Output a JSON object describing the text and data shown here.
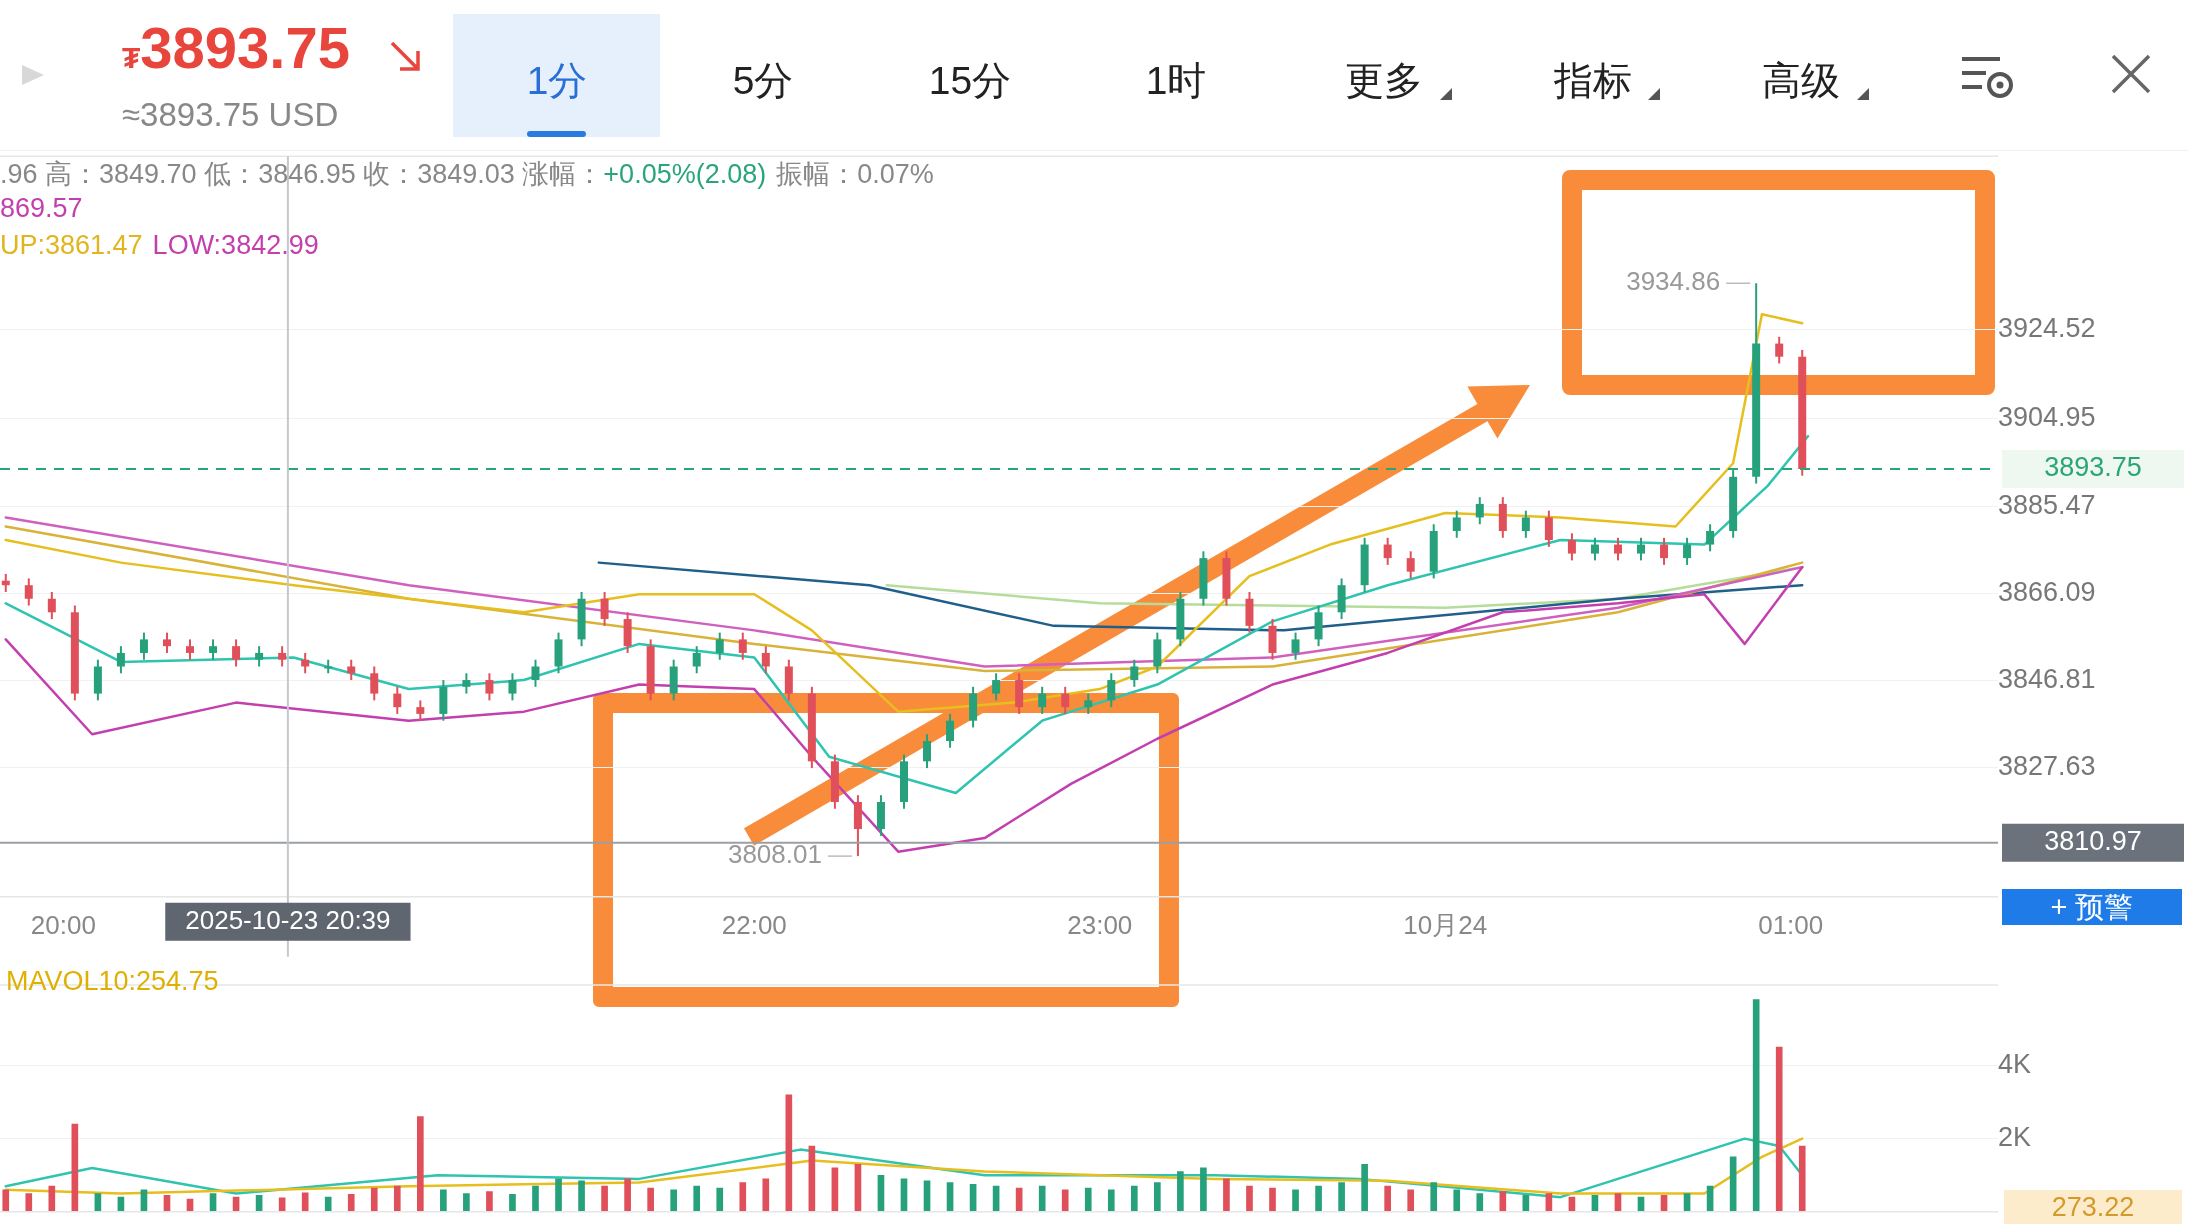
{
  "chart_data": [
    {
      "type": "candlestick",
      "x": [
        "2025-10-23T19:50",
        "2025-10-23T19:54",
        "2025-10-23T19:58",
        "2025-10-23T20:02",
        "2025-10-23T20:06",
        "2025-10-23T20:10",
        "2025-10-23T20:14",
        "2025-10-23T20:18",
        "2025-10-23T20:22",
        "2025-10-23T20:26",
        "2025-10-23T20:30",
        "2025-10-23T20:34",
        "2025-10-23T20:38",
        "2025-10-23T20:42",
        "2025-10-23T20:46",
        "2025-10-23T20:50",
        "2025-10-23T20:54",
        "2025-10-23T20:58",
        "2025-10-23T21:02",
        "2025-10-23T21:06",
        "2025-10-23T21:10",
        "2025-10-23T21:14",
        "2025-10-23T21:18",
        "2025-10-23T21:22",
        "2025-10-23T21:26",
        "2025-10-23T21:30",
        "2025-10-23T21:34",
        "2025-10-23T21:38",
        "2025-10-23T21:42",
        "2025-10-23T21:46",
        "2025-10-23T21:50",
        "2025-10-23T21:54",
        "2025-10-23T21:58",
        "2025-10-23T22:02",
        "2025-10-23T22:06",
        "2025-10-23T22:10",
        "2025-10-23T22:14",
        "2025-10-23T22:18",
        "2025-10-23T22:22",
        "2025-10-23T22:26",
        "2025-10-23T22:30",
        "2025-10-23T22:34",
        "2025-10-23T22:38",
        "2025-10-23T22:42",
        "2025-10-23T22:46",
        "2025-10-23T22:50",
        "2025-10-23T22:54",
        "2025-10-23T22:58",
        "2025-10-23T23:02",
        "2025-10-23T23:06",
        "2025-10-23T23:10",
        "2025-10-23T23:14",
        "2025-10-23T23:18",
        "2025-10-23T23:22",
        "2025-10-23T23:26",
        "2025-10-23T23:30",
        "2025-10-23T23:34",
        "2025-10-23T23:38",
        "2025-10-23T23:42",
        "2025-10-23T23:46",
        "2025-10-23T23:50",
        "2025-10-23T23:54",
        "2025-10-23T23:58",
        "2025-10-24T00:02",
        "2025-10-24T00:06",
        "2025-10-24T00:10",
        "2025-10-24T00:14",
        "2025-10-24T00:18",
        "2025-10-24T00:22",
        "2025-10-24T00:26",
        "2025-10-24T00:30",
        "2025-10-24T00:34",
        "2025-10-24T00:38",
        "2025-10-24T00:42",
        "2025-10-24T00:46",
        "2025-10-24T00:50",
        "2025-10-24T00:54",
        "2025-10-24T00:58",
        "2025-10-24T01:02"
      ],
      "ohlc": [
        [
          3869,
          3870.5,
          3866.5,
          3868
        ],
        [
          3868,
          3869.5,
          3863.5,
          3865
        ],
        [
          3865,
          3866.5,
          3860.5,
          3862
        ],
        [
          3862,
          3863.5,
          3842.5,
          3844
        ],
        [
          3844,
          3851.5,
          3842.5,
          3850
        ],
        [
          3850,
          3854.5,
          3848.5,
          3853
        ],
        [
          3853,
          3857.5,
          3851.5,
          3856
        ],
        [
          3856,
          3857.5,
          3853,
          3854.5
        ],
        [
          3854.5,
          3856,
          3851.5,
          3853
        ],
        [
          3853,
          3856,
          3851.5,
          3854.5
        ],
        [
          3854.5,
          3856,
          3850,
          3851.5
        ],
        [
          3851.5,
          3854.5,
          3850,
          3853
        ],
        [
          3853,
          3854.5,
          3850,
          3851.5
        ],
        [
          3851.5,
          3853,
          3848.5,
          3850
        ],
        [
          3850,
          3851.5,
          3848.5,
          3850
        ],
        [
          3850,
          3851.5,
          3847,
          3848.5
        ],
        [
          3848.5,
          3850,
          3842.5,
          3844
        ],
        [
          3844,
          3845.5,
          3839.5,
          3841
        ],
        [
          3841,
          3842.5,
          3838,
          3839.5
        ],
        [
          3839.5,
          3847,
          3838,
          3845.5
        ],
        [
          3845.5,
          3848.5,
          3844,
          3847
        ],
        [
          3847,
          3848.5,
          3842.5,
          3844
        ],
        [
          3844,
          3848.5,
          3842.5,
          3847
        ],
        [
          3847,
          3851.5,
          3845.5,
          3850
        ],
        [
          3850,
          3857.5,
          3848.5,
          3856
        ],
        [
          3856,
          3866.5,
          3854.5,
          3865
        ],
        [
          3865,
          3866.5,
          3859,
          3860.5
        ],
        [
          3860.5,
          3862,
          3853,
          3854.5
        ],
        [
          3854.5,
          3856,
          3842.5,
          3844
        ],
        [
          3844,
          3851.5,
          3842.5,
          3850
        ],
        [
          3850,
          3854.5,
          3848.5,
          3853
        ],
        [
          3853,
          3857.5,
          3851.5,
          3856
        ],
        [
          3856,
          3857.5,
          3851.5,
          3853
        ],
        [
          3853,
          3854.5,
          3848.5,
          3850
        ],
        [
          3850,
          3851.5,
          3842.5,
          3844
        ],
        [
          3844,
          3845.5,
          3827.5,
          3829
        ],
        [
          3829,
          3830.5,
          3818.5,
          3820
        ],
        [
          3820,
          3821.5,
          3808.01,
          3814
        ],
        [
          3814,
          3821.5,
          3812.5,
          3820
        ],
        [
          3820,
          3830.5,
          3818.5,
          3829
        ],
        [
          3829,
          3835,
          3827.5,
          3833.5
        ],
        [
          3833.5,
          3839.5,
          3832,
          3838
        ],
        [
          3838,
          3845.5,
          3836.5,
          3844
        ],
        [
          3844,
          3848.5,
          3842.5,
          3847
        ],
        [
          3847,
          3848.5,
          3839.5,
          3841
        ],
        [
          3841,
          3845.5,
          3839.5,
          3844
        ],
        [
          3844,
          3845.5,
          3839.5,
          3841
        ],
        [
          3841,
          3844,
          3839.5,
          3842.5
        ],
        [
          3842.5,
          3848.5,
          3841,
          3847
        ],
        [
          3847,
          3851.5,
          3845.5,
          3850
        ],
        [
          3850,
          3857.5,
          3848.5,
          3856
        ],
        [
          3856,
          3866.5,
          3854.5,
          3865
        ],
        [
          3865,
          3875.5,
          3863.5,
          3874
        ],
        [
          3874,
          3875.5,
          3863.5,
          3865
        ],
        [
          3865,
          3866.5,
          3857.5,
          3859
        ],
        [
          3859,
          3860.5,
          3851.5,
          3853
        ],
        [
          3853,
          3857.5,
          3851.5,
          3856
        ],
        [
          3856,
          3863.5,
          3854.5,
          3862
        ],
        [
          3862,
          3869.5,
          3860.5,
          3868
        ],
        [
          3868,
          3878.5,
          3866.5,
          3877
        ],
        [
          3877,
          3878.5,
          3872.5,
          3874
        ],
        [
          3874,
          3875.5,
          3869.5,
          3871
        ],
        [
          3871,
          3881.5,
          3869.5,
          3880
        ],
        [
          3880,
          3884.5,
          3878.5,
          3883
        ],
        [
          3883,
          3887.5,
          3881.5,
          3886
        ],
        [
          3886,
          3887.5,
          3878.5,
          3880
        ],
        [
          3880,
          3884.5,
          3878.5,
          3883
        ],
        [
          3883,
          3884.5,
          3876.5,
          3878
        ],
        [
          3878,
          3879.5,
          3873.5,
          3875
        ],
        [
          3875,
          3878.5,
          3873.5,
          3877
        ],
        [
          3877,
          3878.5,
          3873.5,
          3875
        ],
        [
          3875,
          3878.5,
          3873.5,
          3877
        ],
        [
          3877,
          3878.5,
          3872.5,
          3874
        ],
        [
          3874,
          3878.5,
          3872.5,
          3877
        ],
        [
          3877,
          3881.5,
          3875.5,
          3880
        ],
        [
          3880,
          3893.5,
          3878.5,
          3892
        ],
        [
          3892,
          3934.86,
          3890.5,
          3921.5
        ],
        [
          3921.5,
          3923,
          3917.1,
          3918.6
        ],
        [
          3918.6,
          3920.1,
          3892.25,
          3893.75
        ]
      ],
      "colors": [
        "#e0505a",
        "#e0505a",
        "#e0505a",
        "#e0505a",
        "#26a17b",
        "#26a17b",
        "#26a17b",
        "#e0505a",
        "#e0505a",
        "#26a17b",
        "#e0505a",
        "#26a17b",
        "#e0505a",
        "#e0505a",
        "#26a17b",
        "#e0505a",
        "#e0505a",
        "#e0505a",
        "#e0505a",
        "#26a17b",
        "#26a17b",
        "#e0505a",
        "#26a17b",
        "#26a17b",
        "#26a17b",
        "#26a17b",
        "#e0505a",
        "#e0505a",
        "#e0505a",
        "#26a17b",
        "#26a17b",
        "#26a17b",
        "#e0505a",
        "#e0505a",
        "#e0505a",
        "#e0505a",
        "#e0505a",
        "#e0505a",
        "#26a17b",
        "#26a17b",
        "#26a17b",
        "#26a17b",
        "#26a17b",
        "#26a17b",
        "#e0505a",
        "#26a17b",
        "#e0505a",
        "#26a17b",
        "#26a17b",
        "#26a17b",
        "#26a17b",
        "#26a17b",
        "#26a17b",
        "#e0505a",
        "#e0505a",
        "#e0505a",
        "#26a17b",
        "#26a17b",
        "#26a17b",
        "#26a17b",
        "#e0505a",
        "#e0505a",
        "#26a17b",
        "#26a17b",
        "#26a17b",
        "#e0505a",
        "#26a17b",
        "#e0505a",
        "#e0505a",
        "#26a17b",
        "#e0505a",
        "#26a17b",
        "#e0505a",
        "#26a17b",
        "#26a17b",
        "#26a17b",
        "#26a17b",
        "#e0505a",
        "#e0505a"
      ],
      "series": [
        {
          "type": "line",
          "color": "#e6bf1e",
          "x": [
            "2025-10-23T19:50",
            "2025-10-23T20:10",
            "2025-10-23T20:40",
            "2025-10-23T21:20",
            "2025-10-23T21:40",
            "2025-10-23T22:00",
            "2025-10-23T22:10",
            "2025-10-23T22:25",
            "2025-10-23T22:45",
            "2025-10-23T23:00",
            "2025-10-23T23:10",
            "2025-10-23T23:26",
            "2025-10-23T23:40",
            "2025-10-24T00:00",
            "2025-10-24T00:20",
            "2025-10-24T00:40",
            "2025-10-24T00:50",
            "2025-10-24T00:55",
            "2025-10-24T01:02"
          ],
          "values": [
            3878,
            3873,
            3868,
            3862,
            3866,
            3866,
            3858,
            3840,
            3842,
            3845,
            3850,
            3870,
            3877,
            3884,
            3883,
            3881,
            3895,
            3928,
            3926
          ]
        },
        {
          "type": "line",
          "color": "#2ec4b0",
          "x": [
            "2025-10-23T19:50",
            "2025-10-23T20:10",
            "2025-10-23T20:40",
            "2025-10-23T21:00",
            "2025-10-23T21:20",
            "2025-10-23T21:40",
            "2025-10-23T22:00",
            "2025-10-23T22:13",
            "2025-10-23T22:35",
            "2025-10-23T22:50",
            "2025-10-23T23:10",
            "2025-10-23T23:30",
            "2025-10-23T23:50",
            "2025-10-24T00:20",
            "2025-10-24T00:45",
            "2025-10-24T00:56",
            "2025-10-24T01:03"
          ],
          "values": [
            3864,
            3851,
            3852,
            3845,
            3847,
            3855,
            3852,
            3830,
            3822,
            3838,
            3846,
            3860,
            3868,
            3878,
            3877,
            3890,
            3901
          ]
        },
        {
          "type": "line",
          "color": "#c33fae",
          "x": [
            "2025-10-23T19:50",
            "2025-10-23T20:05",
            "2025-10-23T20:30",
            "2025-10-23T21:00",
            "2025-10-23T21:20",
            "2025-10-23T21:40",
            "2025-10-23T22:00",
            "2025-10-23T22:10",
            "2025-10-23T22:25",
            "2025-10-23T22:40",
            "2025-10-23T22:55",
            "2025-10-23T23:10",
            "2025-10-23T23:30",
            "2025-10-23T23:50",
            "2025-10-24T00:10",
            "2025-10-24T00:30",
            "2025-10-24T00:45",
            "2025-10-24T00:52",
            "2025-10-24T01:02"
          ],
          "values": [
            3856,
            3835,
            3842,
            3838,
            3840,
            3846,
            3845,
            3830,
            3809,
            3812,
            3824,
            3834,
            3846,
            3853,
            3862,
            3864,
            3866,
            3855,
            3872
          ]
        },
        {
          "type": "line",
          "color": "#d060c0",
          "x": [
            "2025-10-23T19:50",
            "2025-10-23T21:00",
            "2025-10-23T22:00",
            "2025-10-23T22:40",
            "2025-10-23T23:30",
            "2025-10-24T00:30",
            "2025-10-24T01:02"
          ],
          "values": [
            3883,
            3868,
            3858,
            3850,
            3852,
            3863,
            3872
          ]
        },
        {
          "type": "line",
          "color": "#d9b23a",
          "x": [
            "2025-10-23T19:50",
            "2025-10-23T21:00",
            "2025-10-23T22:00",
            "2025-10-23T22:40",
            "2025-10-23T23:30",
            "2025-10-24T00:30",
            "2025-10-24T01:02"
          ],
          "values": [
            3881,
            3865,
            3855,
            3849,
            3850,
            3862,
            3873
          ]
        },
        {
          "type": "line",
          "color": "#1f5f8a",
          "x": [
            "2025-10-23T21:33",
            "2025-10-23T22:20",
            "2025-10-23T22:52",
            "2025-10-23T23:32",
            "2025-10-24T00:30",
            "2025-10-24T01:02"
          ],
          "values": [
            3873,
            3868,
            3859,
            3858,
            3865,
            3868
          ]
        },
        {
          "type": "line",
          "color": "#b5dc9a",
          "x": [
            "2025-10-23T22:23",
            "2025-10-23T23:00",
            "2025-10-24T00:00",
            "2025-10-24T00:30",
            "2025-10-24T01:02"
          ],
          "values": [
            3868,
            3864,
            3863,
            3865,
            3872
          ]
        }
      ],
      "xlim": [
        "2025-10-23T19:49",
        "2025-10-24T01:36"
      ],
      "xticks": [
        {
          "value": "2025-10-23T20:00",
          "label": "20:00"
        },
        {
          "value": "2025-10-23T22:00",
          "label": "22:00"
        },
        {
          "value": "2025-10-23T23:00",
          "label": "23:00"
        },
        {
          "value": "2025-10-24T00:00",
          "label": "10月24"
        },
        {
          "value": "2025-10-24T01:00",
          "label": "01:00"
        }
      ],
      "ylim": [
        3799,
        3963
      ],
      "yticks": [
        3827.63,
        3846.81,
        3866.09,
        3885.47,
        3904.95,
        3924.52
      ],
      "grid": "y",
      "legend": false,
      "marker": "none",
      "ref_lines": [
        {
          "axis": "y",
          "value": 3893.75,
          "label": "3893.75",
          "color": "#2aa57a",
          "line_style": "dashed"
        },
        {
          "axis": "y",
          "value": 3810.97,
          "label": "3810.97",
          "color": "#9a9fa6"
        },
        {
          "axis": "x",
          "value": "2025-10-23T20:39",
          "label": "2025-10-23 20:39",
          "color": "#c4c7cc"
        }
      ],
      "annotations": [
        "₮",
        "3893.75",
        "≈3893.75 USD",
        "1分",
        "5分",
        "15分",
        "1时",
        "更多",
        "指标",
        "高级",
        ".96 高：3849.70 低：3846.95 收：3849.03 涨幅：",
        "+0.05%(2.08)",
        "振幅：0.07%",
        "869.57",
        "UP:3861.47",
        "LOW:3842.99",
        "+ 预警",
        {
          "text": "3934.86",
          "x": "2025-10-24T00:54",
          "y": 3934.86
        },
        {
          "text": "3808.01",
          "x": "2025-10-23T22:18",
          "y": 3808.01
        }
      ]
    },
    {
      "type": "bar",
      "x": [
        "2025-10-23T19:50",
        "2025-10-23T19:54",
        "2025-10-23T19:58",
        "2025-10-23T20:02",
        "2025-10-23T20:06",
        "2025-10-23T20:10",
        "2025-10-23T20:14",
        "2025-10-23T20:18",
        "2025-10-23T20:22",
        "2025-10-23T20:26",
        "2025-10-23T20:30",
        "2025-10-23T20:34",
        "2025-10-23T20:38",
        "2025-10-23T20:42",
        "2025-10-23T20:46",
        "2025-10-23T20:50",
        "2025-10-23T20:54",
        "2025-10-23T20:58",
        "2025-10-23T21:02",
        "2025-10-23T21:06",
        "2025-10-23T21:10",
        "2025-10-23T21:14",
        "2025-10-23T21:18",
        "2025-10-23T21:22",
        "2025-10-23T21:26",
        "2025-10-23T21:30",
        "2025-10-23T21:34",
        "2025-10-23T21:38",
        "2025-10-23T21:42",
        "2025-10-23T21:46",
        "2025-10-23T21:50",
        "2025-10-23T21:54",
        "2025-10-23T21:58",
        "2025-10-23T22:02",
        "2025-10-23T22:06",
        "2025-10-23T22:10",
        "2025-10-23T22:14",
        "2025-10-23T22:18",
        "2025-10-23T22:22",
        "2025-10-23T22:26",
        "2025-10-23T22:30",
        "2025-10-23T22:34",
        "2025-10-23T22:38",
        "2025-10-23T22:42",
        "2025-10-23T22:46",
        "2025-10-23T22:50",
        "2025-10-23T22:54",
        "2025-10-23T22:58",
        "2025-10-23T23:02",
        "2025-10-23T23:06",
        "2025-10-23T23:10",
        "2025-10-23T23:14",
        "2025-10-23T23:18",
        "2025-10-23T23:22",
        "2025-10-23T23:26",
        "2025-10-23T23:30",
        "2025-10-23T23:34",
        "2025-10-23T23:38",
        "2025-10-23T23:42",
        "2025-10-23T23:46",
        "2025-10-23T23:50",
        "2025-10-23T23:54",
        "2025-10-23T23:58",
        "2025-10-24T00:02",
        "2025-10-24T00:06",
        "2025-10-24T00:10",
        "2025-10-24T00:14",
        "2025-10-24T00:18",
        "2025-10-24T00:22",
        "2025-10-24T00:26",
        "2025-10-24T00:30",
        "2025-10-24T00:34",
        "2025-10-24T00:38",
        "2025-10-24T00:42",
        "2025-10-24T00:46",
        "2025-10-24T00:50",
        "2025-10-24T00:54",
        "2025-10-24T00:58",
        "2025-10-24T01:02"
      ],
      "values": [
        600,
        500,
        700,
        2400,
        500,
        400,
        600,
        450,
        350,
        500,
        400,
        450,
        380,
        520,
        400,
        480,
        650,
        700,
        2600,
        600,
        500,
        550,
        480,
        700,
        900,
        850,
        700,
        900,
        650,
        600,
        700,
        650,
        800,
        900,
        3200,
        1800,
        1200,
        1300,
        1000,
        900,
        850,
        800,
        750,
        700,
        650,
        700,
        600,
        650,
        600,
        700,
        800,
        1100,
        1200,
        900,
        700,
        650,
        600,
        700,
        800,
        1300,
        700,
        600,
        800,
        600,
        500,
        550,
        450,
        500,
        400,
        450,
        500,
        400,
        450,
        500,
        700,
        1500,
        5800,
        4500,
        1800
      ],
      "colors": [
        "#e0505a",
        "#e0505a",
        "#e0505a",
        "#e0505a",
        "#26a17b",
        "#26a17b",
        "#26a17b",
        "#e0505a",
        "#e0505a",
        "#26a17b",
        "#e0505a",
        "#26a17b",
        "#e0505a",
        "#e0505a",
        "#26a17b",
        "#e0505a",
        "#e0505a",
        "#e0505a",
        "#e0505a",
        "#26a17b",
        "#26a17b",
        "#e0505a",
        "#26a17b",
        "#26a17b",
        "#26a17b",
        "#26a17b",
        "#e0505a",
        "#e0505a",
        "#e0505a",
        "#26a17b",
        "#26a17b",
        "#26a17b",
        "#e0505a",
        "#e0505a",
        "#e0505a",
        "#e0505a",
        "#e0505a",
        "#e0505a",
        "#26a17b",
        "#26a17b",
        "#26a17b",
        "#26a17b",
        "#26a17b",
        "#26a17b",
        "#e0505a",
        "#26a17b",
        "#e0505a",
        "#26a17b",
        "#26a17b",
        "#26a17b",
        "#26a17b",
        "#26a17b",
        "#26a17b",
        "#e0505a",
        "#e0505a",
        "#e0505a",
        "#26a17b",
        "#26a17b",
        "#26a17b",
        "#26a17b",
        "#e0505a",
        "#e0505a",
        "#26a17b",
        "#26a17b",
        "#26a17b",
        "#e0505a",
        "#26a17b",
        "#e0505a",
        "#e0505a",
        "#26a17b",
        "#e0505a",
        "#26a17b",
        "#e0505a",
        "#26a17b",
        "#26a17b",
        "#26a17b",
        "#26a17b",
        "#e0505a",
        "#e0505a"
      ],
      "series": [
        {
          "type": "line",
          "color": "#e6bf1e",
          "x": [
            "2025-10-23T19:50",
            "2025-10-23T20:10",
            "2025-10-23T21:00",
            "2025-10-23T21:40",
            "2025-10-23T22:10",
            "2025-10-23T22:40",
            "2025-10-23T23:20",
            "2025-10-23T23:50",
            "2025-10-24T00:20",
            "2025-10-24T00:45",
            "2025-10-24T00:55",
            "2025-10-24T01:02"
          ],
          "values": [
            600,
            500,
            700,
            800,
            1400,
            1100,
            900,
            850,
            500,
            500,
            1500,
            2000
          ]
        },
        {
          "type": "line",
          "color": "#2ec4b0",
          "x": [
            "2025-10-23T19:50",
            "2025-10-23T20:05",
            "2025-10-23T20:30",
            "2025-10-23T21:05",
            "2025-10-23T21:40",
            "2025-10-23T22:08",
            "2025-10-23T22:40",
            "2025-10-23T23:20",
            "2025-10-23T23:45",
            "2025-10-24T00:20",
            "2025-10-24T00:52",
            "2025-10-24T00:58",
            "2025-10-24T01:02"
          ],
          "values": [
            700,
            1200,
            500,
            1000,
            900,
            1700,
            1000,
            1000,
            900,
            400,
            2000,
            1800,
            1000
          ]
        }
      ],
      "xlim": [
        "2025-10-23T19:49",
        "2025-10-24T01:36"
      ],
      "ylim": [
        0,
        6200
      ],
      "yticks": [
        {
          "value": 2000,
          "label": "2K"
        },
        {
          "value": 4000,
          "label": "4K"
        }
      ],
      "grid": "y",
      "legend": false,
      "marker": "none",
      "tick_labels": "y",
      "annotations": [
        "MAVOL10:254.75",
        "273.22"
      ]
    }
  ]
}
